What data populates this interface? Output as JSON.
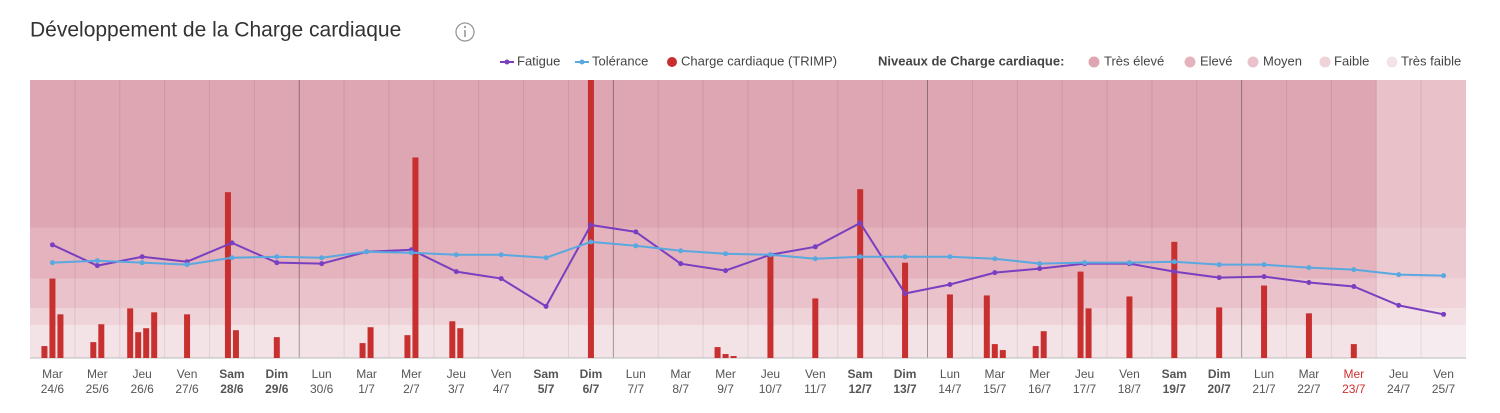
{
  "chart_data": {
    "type": "combo",
    "title": "Développement de la Charge cardiaque",
    "levels_title": "Niveaux de Charge cardiaque:",
    "categories": [
      {
        "day": "Mar",
        "date": "24/6"
      },
      {
        "day": "Mer",
        "date": "25/6"
      },
      {
        "day": "Jeu",
        "date": "26/6"
      },
      {
        "day": "Ven",
        "date": "27/6"
      },
      {
        "day": "Sam",
        "date": "28/6"
      },
      {
        "day": "Dim",
        "date": "29/6"
      },
      {
        "day": "Lun",
        "date": "30/6"
      },
      {
        "day": "Mar",
        "date": "1/7"
      },
      {
        "day": "Mer",
        "date": "2/7"
      },
      {
        "day": "Jeu",
        "date": "3/7"
      },
      {
        "day": "Ven",
        "date": "4/7"
      },
      {
        "day": "Sam",
        "date": "5/7"
      },
      {
        "day": "Dim",
        "date": "6/7"
      },
      {
        "day": "Lun",
        "date": "7/7"
      },
      {
        "day": "Mar",
        "date": "8/7"
      },
      {
        "day": "Mer",
        "date": "9/7"
      },
      {
        "day": "Jeu",
        "date": "10/7"
      },
      {
        "day": "Ven",
        "date": "11/7"
      },
      {
        "day": "Sam",
        "date": "12/7"
      },
      {
        "day": "Dim",
        "date": "13/7"
      },
      {
        "day": "Lun",
        "date": "14/7"
      },
      {
        "day": "Mar",
        "date": "15/7"
      },
      {
        "day": "Mer",
        "date": "16/7"
      },
      {
        "day": "Jeu",
        "date": "17/7"
      },
      {
        "day": "Ven",
        "date": "18/7"
      },
      {
        "day": "Sam",
        "date": "19/7"
      },
      {
        "day": "Dim",
        "date": "20/7"
      },
      {
        "day": "Lun",
        "date": "21/7"
      },
      {
        "day": "Mar",
        "date": "22/7"
      },
      {
        "day": "Mer",
        "date": "23/7"
      },
      {
        "day": "Jeu",
        "date": "24/7"
      },
      {
        "day": "Ven",
        "date": "25/7"
      }
    ],
    "today_index": 29,
    "future_from": 30,
    "ylim": [
      0,
      280
    ],
    "series": [
      {
        "name": "Fatigue",
        "kind": "line",
        "color": "#7a3fc0",
        "values": [
          114,
          93,
          102,
          97,
          116,
          96,
          95,
          107,
          109,
          87,
          80,
          52,
          134,
          127,
          95,
          88,
          104,
          112,
          136,
          65,
          74,
          86,
          90,
          95,
          95,
          87,
          81,
          82,
          76,
          72,
          53,
          44
        ]
      },
      {
        "name": "Tolérance",
        "kind": "line",
        "color": "#5aa8e0",
        "values": [
          96,
          98,
          96,
          94,
          101,
          102,
          101,
          107,
          106,
          104,
          104,
          101,
          117,
          113,
          108,
          105,
          104,
          100,
          102,
          102,
          102,
          100,
          95,
          96,
          96,
          97,
          94,
          94,
          91,
          89,
          84,
          83
        ]
      },
      {
        "name": "Charge cardiaque (TRIMP)",
        "kind": "bar",
        "color": "#c7302f",
        "values": [
          [
            12,
            80,
            44
          ],
          [
            16,
            34
          ],
          [
            50,
            26,
            30,
            46
          ],
          [
            44
          ],
          [
            167,
            28
          ],
          [
            21
          ],
          [],
          [
            15,
            31
          ],
          [
            23,
            202
          ],
          [
            37,
            30
          ],
          [],
          [],
          [
            280
          ],
          [],
          [],
          [
            11,
            4,
            2
          ],
          [
            105
          ],
          [
            60
          ],
          [
            170
          ],
          [
            96
          ],
          [
            64
          ],
          [
            63,
            14,
            8
          ],
          [
            12,
            27
          ],
          [
            87,
            50
          ],
          [
            62
          ],
          [
            117
          ],
          [
            51
          ],
          [
            73
          ],
          [
            45
          ],
          [
            14
          ],
          [],
          []
        ]
      }
    ],
    "levels": [
      {
        "name": "Très faible",
        "color": "#f3e3e7",
        "from": 0
      },
      {
        "name": "Faible",
        "color": "#eed3d9",
        "from": 33
      },
      {
        "name": "Moyen",
        "color": "#eac2cb",
        "from": 50
      },
      {
        "name": "Elevé",
        "color": "#e4b3be",
        "from": 80
      },
      {
        "name": "Très élevé",
        "color": "#dea6b2",
        "from": 131
      }
    ]
  }
}
